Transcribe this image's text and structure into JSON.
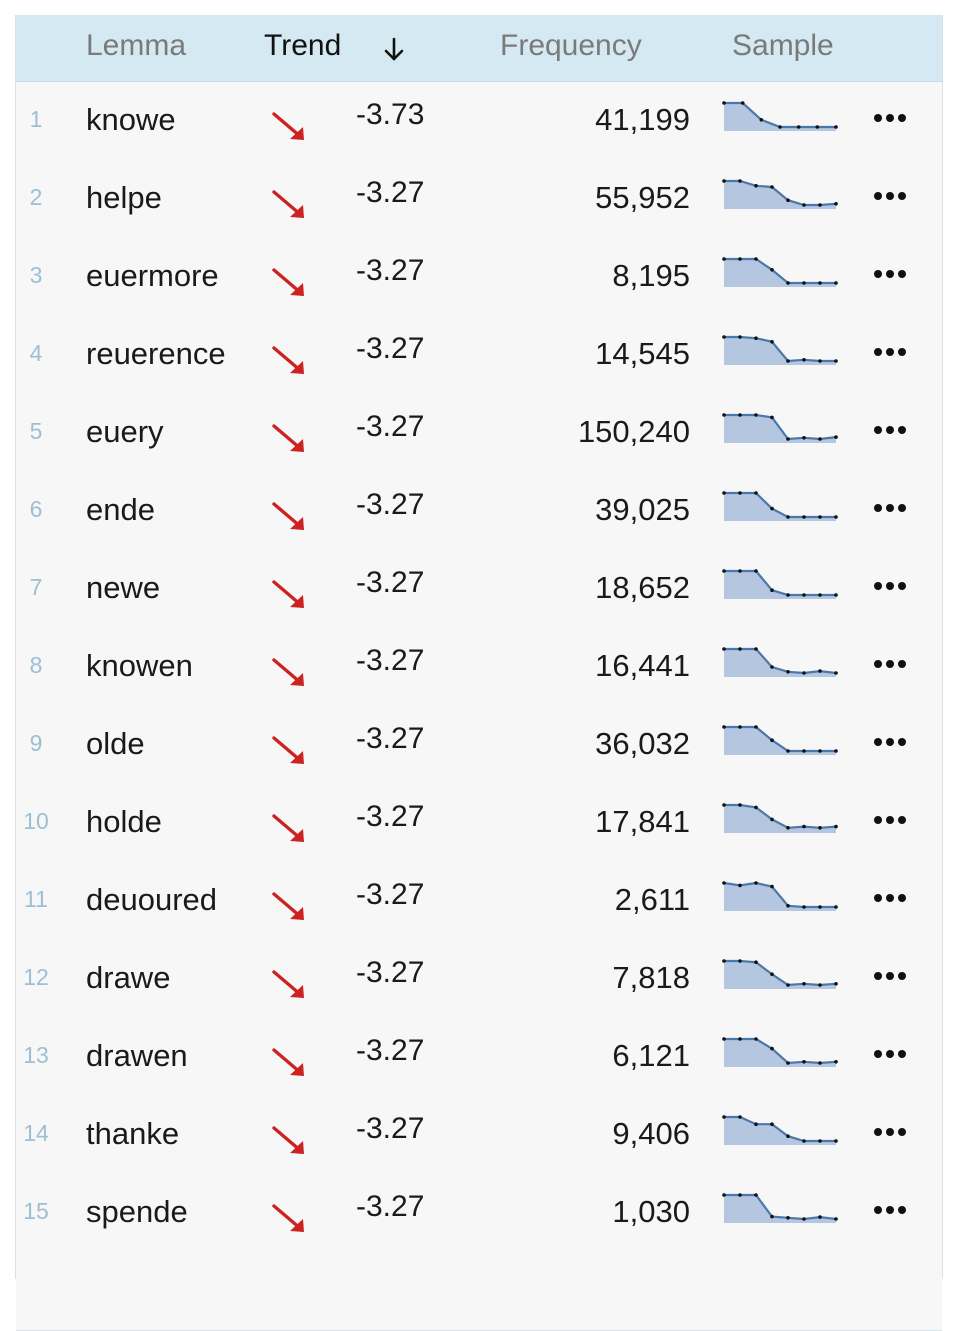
{
  "header": {
    "lemma": "Lemma",
    "trend": "Trend",
    "frequency": "Frequency",
    "sample": "Sample",
    "sort_icon": "arrow-down-icon"
  },
  "colors": {
    "header_bg": "#d4e9f1",
    "trend_down": "#cc2222",
    "spark_fill": "#b5c6e0",
    "spark_line": "#4a78aa",
    "index": "#9dbfd3"
  },
  "rows": [
    {
      "index": "1",
      "lemma": "knowe",
      "trend": "-3.73",
      "frequency": "41,199",
      "sample": [
        1,
        1,
        0.3,
        0,
        0,
        0,
        0
      ]
    },
    {
      "index": "2",
      "lemma": "helpe",
      "trend": "-3.27",
      "frequency": "55,952",
      "sample": [
        1,
        1,
        0.8,
        0.75,
        0.2,
        0,
        0,
        0.05
      ]
    },
    {
      "index": "3",
      "lemma": "euermore",
      "trend": "-3.27",
      "frequency": "8,195",
      "sample": [
        1,
        1,
        1,
        0.55,
        0,
        0,
        0,
        0
      ]
    },
    {
      "index": "4",
      "lemma": "reuerence",
      "trend": "-3.27",
      "frequency": "14,545",
      "sample": [
        1,
        1,
        0.95,
        0.8,
        0,
        0.05,
        0,
        0
      ]
    },
    {
      "index": "5",
      "lemma": "euery",
      "trend": "-3.27",
      "frequency": "150,240",
      "sample": [
        1,
        1,
        1,
        0.9,
        0,
        0.05,
        0,
        0.08
      ]
    },
    {
      "index": "6",
      "lemma": "ende",
      "trend": "-3.27",
      "frequency": "39,025",
      "sample": [
        1,
        1,
        1,
        0.35,
        0,
        0,
        0,
        0
      ]
    },
    {
      "index": "7",
      "lemma": "newe",
      "trend": "-3.27",
      "frequency": "18,652",
      "sample": [
        1,
        1,
        1,
        0.2,
        0,
        0,
        0,
        0
      ]
    },
    {
      "index": "8",
      "lemma": "knowen",
      "trend": "-3.27",
      "frequency": "16,441",
      "sample": [
        1,
        1,
        1,
        0.25,
        0.05,
        0,
        0.08,
        0
      ]
    },
    {
      "index": "9",
      "lemma": "olde",
      "trend": "-3.27",
      "frequency": "36,032",
      "sample": [
        1,
        1,
        1,
        0.45,
        0,
        0,
        0,
        0
      ]
    },
    {
      "index": "10",
      "lemma": "holde",
      "trend": "-3.27",
      "frequency": "17,841",
      "sample": [
        1,
        1,
        0.9,
        0.4,
        0.05,
        0.1,
        0.05,
        0.1
      ]
    },
    {
      "index": "11",
      "lemma": "deuoured",
      "trend": "-3.27",
      "frequency": "2,611",
      "sample": [
        1,
        0.9,
        1,
        0.85,
        0.05,
        0,
        0,
        0
      ]
    },
    {
      "index": "12",
      "lemma": "drawe",
      "trend": "-3.27",
      "frequency": "7,818",
      "sample": [
        1,
        1,
        0.95,
        0.45,
        0,
        0.05,
        0,
        0.05
      ]
    },
    {
      "index": "13",
      "lemma": "drawen",
      "trend": "-3.27",
      "frequency": "6,121",
      "sample": [
        1,
        1,
        1,
        0.6,
        0,
        0.05,
        0,
        0.05
      ]
    },
    {
      "index": "14",
      "lemma": "thanke",
      "trend": "-3.27",
      "frequency": "9,406",
      "sample": [
        1,
        1,
        0.7,
        0.7,
        0.2,
        0,
        0,
        0
      ]
    },
    {
      "index": "15",
      "lemma": "spende",
      "trend": "-3.27",
      "frequency": "1,030",
      "sample": [
        1,
        1,
        1,
        0.1,
        0.05,
        0,
        0.08,
        0
      ]
    }
  ]
}
